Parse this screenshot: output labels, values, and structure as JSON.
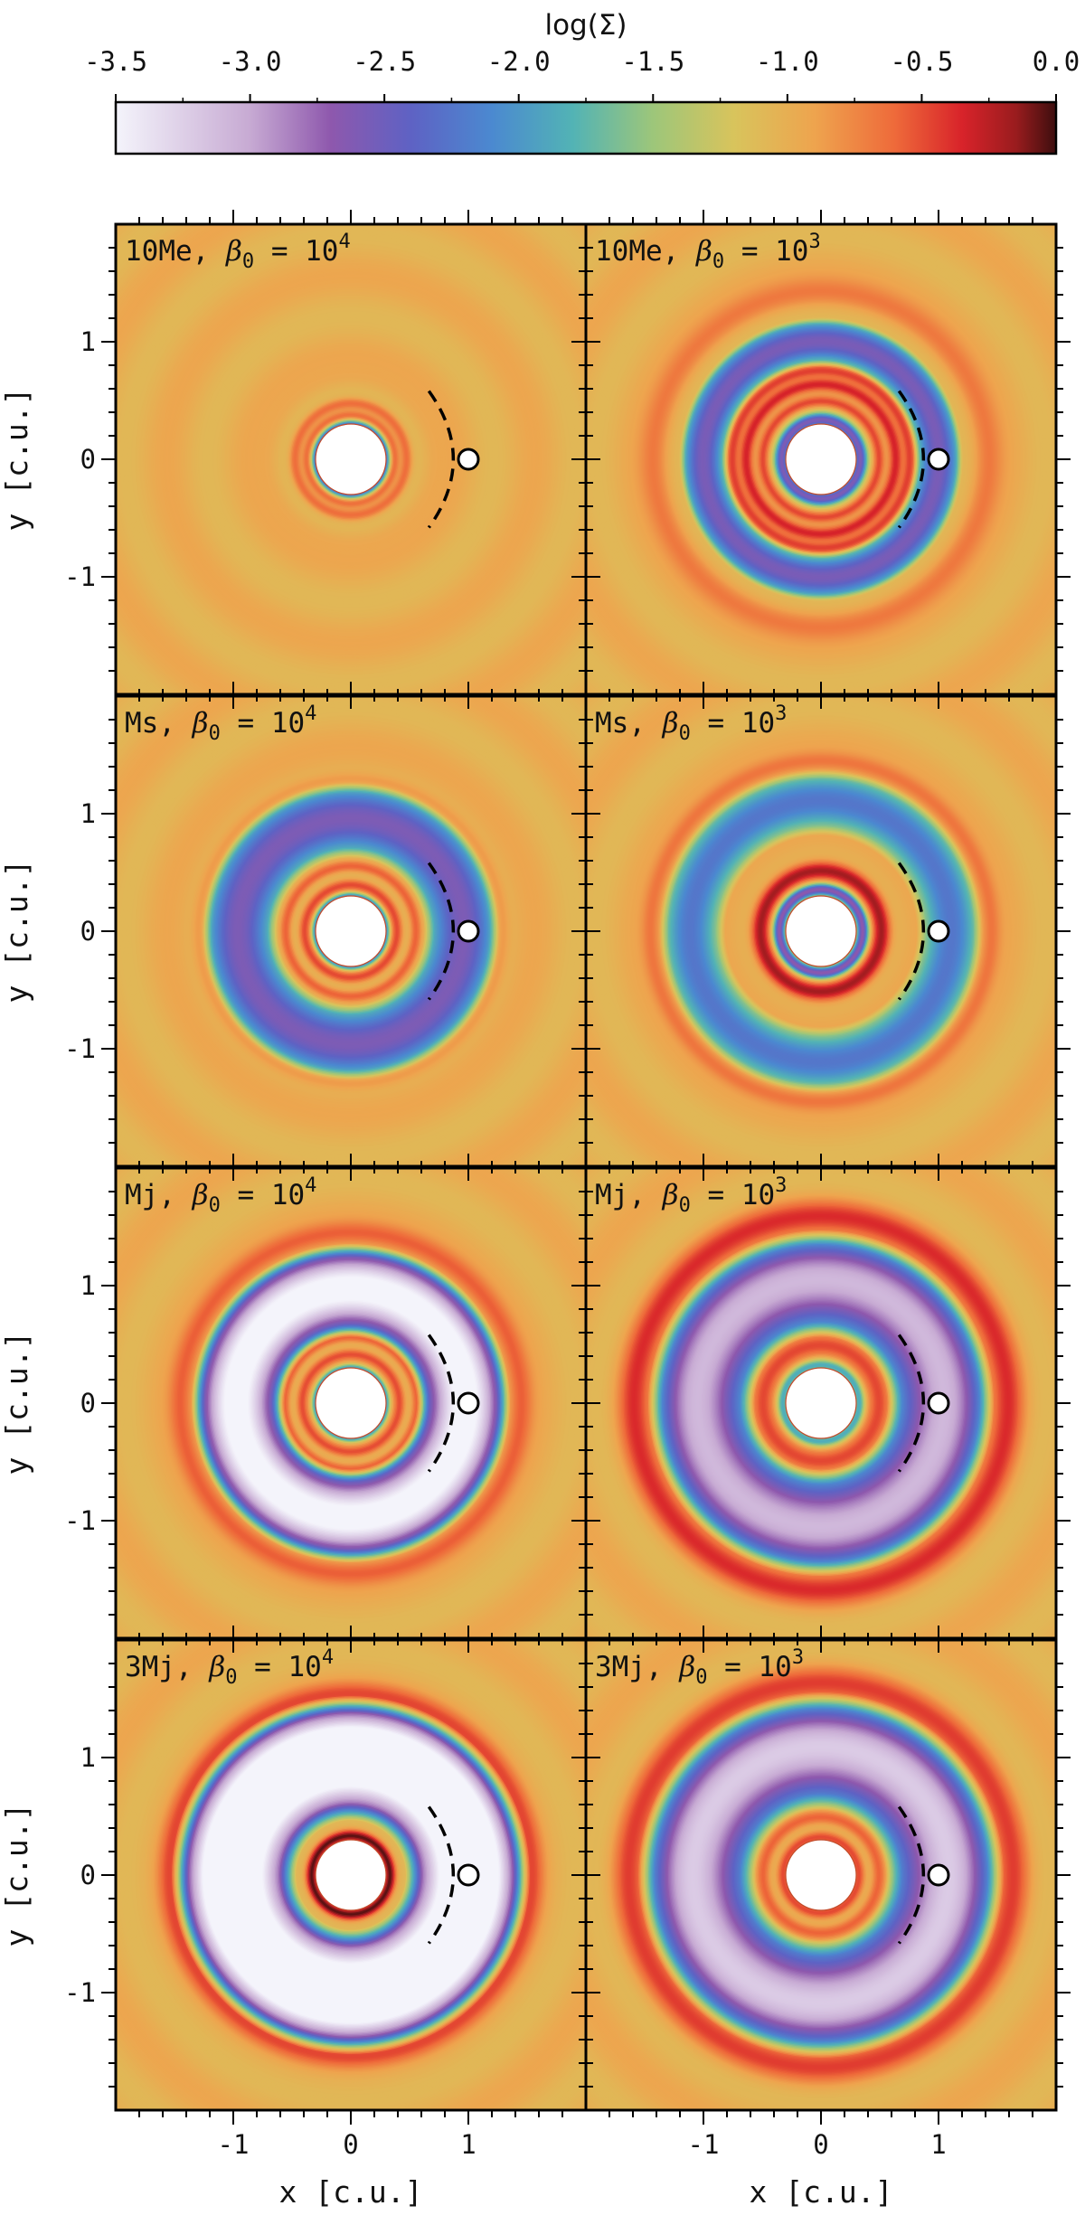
{
  "chart_data": {
    "type": "heatmap",
    "title": "",
    "colorbar": {
      "label": "log(Σ)",
      "range": [
        -3.5,
        0.0
      ],
      "ticks": [
        "-3.5",
        "-3.0",
        "-2.5",
        "-2.0",
        "-1.5",
        "-1.0",
        "-0.5",
        "0.0"
      ],
      "colormap_stops": [
        {
          "value": -3.5,
          "color": "#f4f4fb"
        },
        {
          "value": -3.0,
          "color": "#c7aad3"
        },
        {
          "value": -2.7,
          "color": "#8e58ad"
        },
        {
          "value": -2.4,
          "color": "#5e62c4"
        },
        {
          "value": -2.1,
          "color": "#4b89d0"
        },
        {
          "value": -1.8,
          "color": "#52b3b5"
        },
        {
          "value": -1.5,
          "color": "#9dc67a"
        },
        {
          "value": -1.2,
          "color": "#d8c45c"
        },
        {
          "value": -0.9,
          "color": "#eea44e"
        },
        {
          "value": -0.6,
          "color": "#ee6a3a"
        },
        {
          "value": -0.35,
          "color": "#d8232a"
        },
        {
          "value": -0.15,
          "color": "#9a1c1e"
        },
        {
          "value": 0.0,
          "color": "#3d0e0e"
        }
      ]
    },
    "x_axis": {
      "label": "x [c.u.]",
      "range": [
        -2,
        2
      ],
      "tick_labels": [
        "-1",
        "0",
        "1"
      ],
      "tick_values": [
        -1,
        0,
        1
      ]
    },
    "y_axis": {
      "label": "y [c.u.]",
      "range": [
        -2,
        2
      ],
      "tick_labels": [
        "1",
        "0",
        "-1"
      ],
      "tick_values": [
        1,
        0,
        -1
      ]
    },
    "planet": {
      "x": 1.0,
      "y": 0.0
    },
    "inner_hole_radius": 0.3,
    "panels": [
      {
        "label_prefix": "10Me, ",
        "beta_exp": "4",
        "gap_inner": 0.55,
        "gap_outer": 0.55,
        "gap_depth": 0.0,
        "rings": [
          {
            "r": 0.3,
            "v": -2.3,
            "w": 0.04
          },
          {
            "r": 0.38,
            "v": -0.6,
            "w": 0.04
          },
          {
            "r": 0.48,
            "v": -0.55,
            "w": 0.05
          },
          {
            "r": 0.7,
            "v": -0.95,
            "w": 0.08
          }
        ]
      },
      {
        "label_prefix": "10Me, ",
        "beta_exp": "3",
        "gap_inner": 0.85,
        "gap_outer": 1.15,
        "gap_depth": -1.6,
        "rings": [
          {
            "r": 0.34,
            "v": -2.6,
            "w": 0.06
          },
          {
            "r": 0.5,
            "v": -0.4,
            "w": 0.05
          },
          {
            "r": 0.64,
            "v": -0.3,
            "w": 0.06
          },
          {
            "r": 0.76,
            "v": -0.5,
            "w": 0.05
          },
          {
            "r": 1.42,
            "v": -0.7,
            "w": 0.12
          }
        ]
      },
      {
        "label_prefix": "Ms, ",
        "beta_exp": "4",
        "gap_inner": 0.72,
        "gap_outer": 1.18,
        "gap_depth": -1.65,
        "rings": [
          {
            "r": 0.31,
            "v": -2.0,
            "w": 0.03
          },
          {
            "r": 0.4,
            "v": -0.45,
            "w": 0.05
          },
          {
            "r": 0.56,
            "v": -0.5,
            "w": 0.05
          },
          {
            "r": 1.3,
            "v": -0.8,
            "w": 0.06
          }
        ]
      },
      {
        "label_prefix": "Ms, ",
        "beta_exp": "3",
        "gap_inner": 0.9,
        "gap_outer": 1.3,
        "gap_depth": -1.2,
        "rings": [
          {
            "r": 0.36,
            "v": -2.7,
            "w": 0.05
          },
          {
            "r": 0.52,
            "v": -0.1,
            "w": 0.08
          },
          {
            "r": 1.45,
            "v": -0.7,
            "w": 0.08
          }
        ]
      },
      {
        "label_prefix": "Mj, ",
        "beta_exp": "4",
        "gap_inner": 0.68,
        "gap_outer": 1.25,
        "gap_depth": -2.7,
        "rings": [
          {
            "r": 0.31,
            "v": -1.9,
            "w": 0.03
          },
          {
            "r": 0.42,
            "v": -0.45,
            "w": 0.05
          },
          {
            "r": 0.57,
            "v": -0.5,
            "w": 0.05
          },
          {
            "r": 1.45,
            "v": -0.6,
            "w": 0.1
          }
        ]
      },
      {
        "label_prefix": "Mj, ",
        "beta_exp": "3",
        "gap_inner": 0.7,
        "gap_outer": 1.35,
        "gap_depth": -2.1,
        "rings": [
          {
            "r": 0.33,
            "v": -1.9,
            "w": 0.05
          },
          {
            "r": 0.5,
            "v": -0.4,
            "w": 0.1
          },
          {
            "r": 1.6,
            "v": -0.45,
            "w": 0.14
          }
        ]
      },
      {
        "label_prefix": "3Mj, ",
        "beta_exp": "4",
        "gap_inner": 0.62,
        "gap_outer": 1.38,
        "gap_depth": -3.2,
        "rings": [
          {
            "r": 0.34,
            "v": -0.05,
            "w": 0.05
          },
          {
            "r": 1.55,
            "v": -0.55,
            "w": 0.1
          }
        ]
      },
      {
        "label_prefix": "3Mj, ",
        "beta_exp": "3",
        "gap_inner": 0.7,
        "gap_outer": 1.42,
        "gap_depth": -2.2,
        "rings": [
          {
            "r": 0.33,
            "v": -0.5,
            "w": 0.05
          },
          {
            "r": 0.5,
            "v": -0.5,
            "w": 0.06
          },
          {
            "r": 1.65,
            "v": -0.5,
            "w": 0.14
          }
        ]
      }
    ]
  }
}
